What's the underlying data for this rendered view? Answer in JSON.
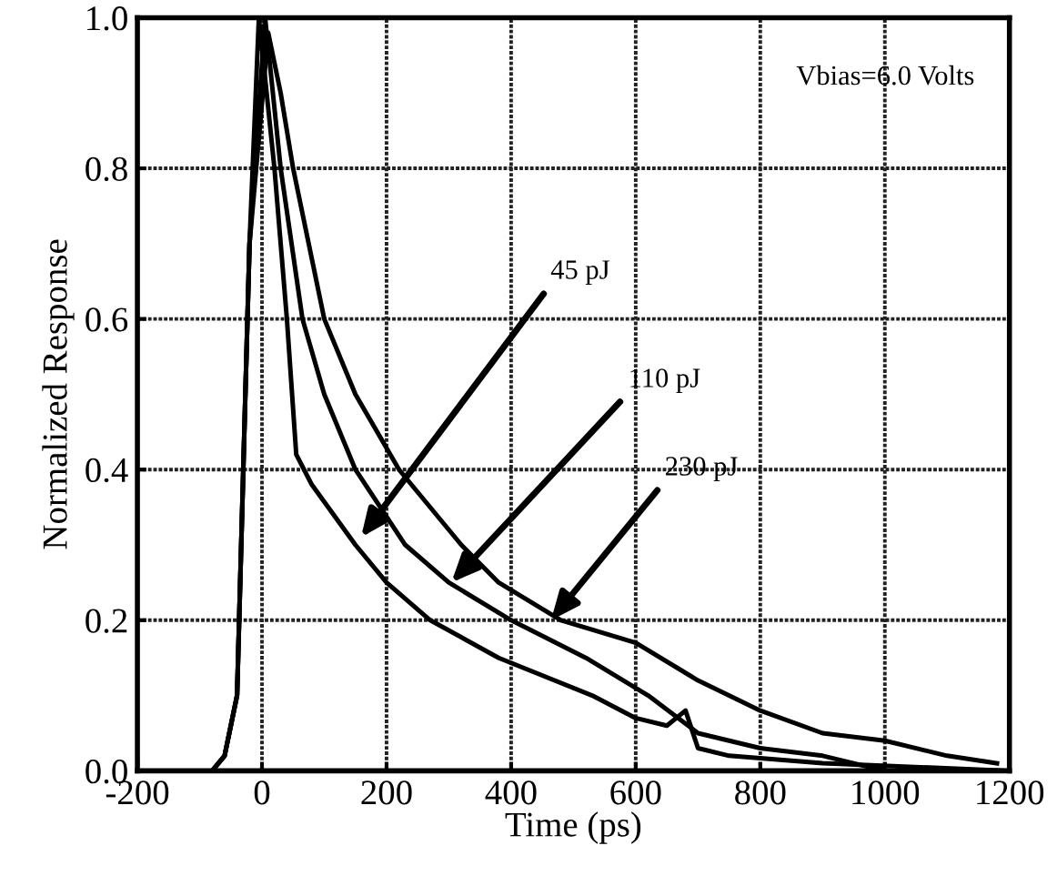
{
  "chart_data": {
    "type": "line",
    "xlabel": "Time (ps)",
    "ylabel": "Normalized Response",
    "xlim": [
      -200,
      1200
    ],
    "ylim": [
      0,
      1
    ],
    "xticks": [
      -200,
      0,
      200,
      400,
      600,
      800,
      1000,
      1200
    ],
    "yticks": [
      {
        "value": 0,
        "label": "0.0"
      },
      0.2,
      0.4,
      0.6,
      0.8,
      {
        "value": 1,
        "label": "1.0"
      }
    ],
    "grid": true,
    "marker": "none",
    "line_style": "solid",
    "series": [
      {
        "color": "#000000",
        "x": [
          -200,
          -80,
          -60,
          -40,
          -30,
          -20,
          -5,
          20,
          40,
          55,
          80,
          150,
          200,
          270,
          380,
          530,
          600,
          650,
          680,
          700,
          750,
          900,
          1200
        ],
        "values": [
          0,
          0,
          0.02,
          0.1,
          0.4,
          0.7,
          1.0,
          0.8,
          0.6,
          0.42,
          0.38,
          0.3,
          0.25,
          0.2,
          0.15,
          0.1,
          0.07,
          0.06,
          0.08,
          0.03,
          0.02,
          0.01,
          0.0
        ]
      },
      {
        "color": "#000000",
        "x": [
          -200,
          -80,
          -60,
          -40,
          -30,
          -20,
          5,
          30,
          65,
          100,
          150,
          230,
          300,
          400,
          520,
          620,
          700,
          800,
          900,
          1000,
          1200
        ],
        "values": [
          0,
          0,
          0.02,
          0.1,
          0.4,
          0.7,
          1.0,
          0.8,
          0.6,
          0.5,
          0.4,
          0.3,
          0.25,
          0.2,
          0.15,
          0.1,
          0.05,
          0.03,
          0.02,
          0.0,
          0.0
        ]
      },
      {
        "color": "#000000",
        "x": [
          -200,
          -80,
          -60,
          -40,
          -30,
          -20,
          10,
          30,
          50,
          100,
          150,
          220,
          320,
          380,
          480,
          560,
          600,
          700,
          800,
          900,
          1000,
          1100,
          1180
        ],
        "values": [
          0,
          0,
          0.02,
          0.1,
          0.4,
          0.7,
          0.98,
          0.9,
          0.8,
          0.6,
          0.5,
          0.4,
          0.3,
          0.25,
          0.2,
          0.18,
          0.17,
          0.12,
          0.08,
          0.05,
          0.04,
          0.02,
          0.01
        ]
      }
    ],
    "annotations": [
      "Vbias=6.0 Volts",
      {
        "text": "45 pJ",
        "x": 159,
        "y": 0.31
      },
      {
        "text": "110 pJ",
        "x": 304,
        "y": 0.25
      },
      {
        "text": "230 pJ",
        "x": 464,
        "y": 0.2
      }
    ]
  }
}
